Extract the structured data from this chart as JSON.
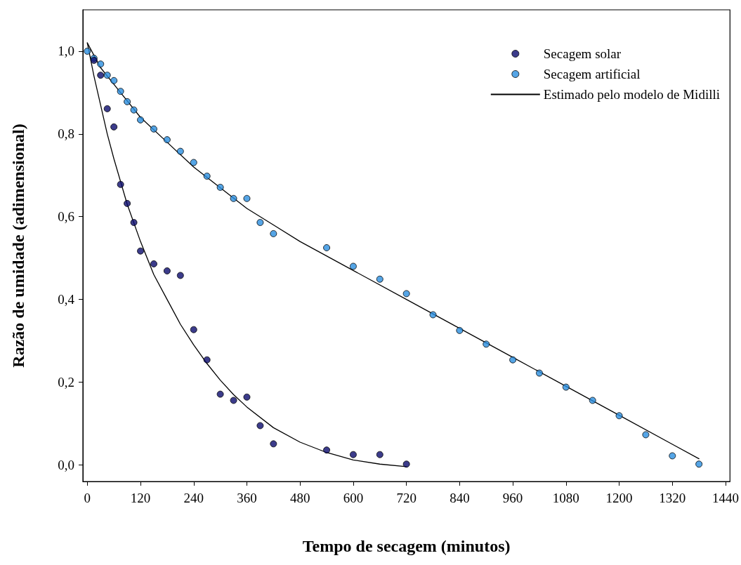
{
  "chart_data": {
    "type": "scatter",
    "xlabel": "Tempo de secagem (minutos)",
    "ylabel": "Razão de umidade (adimensional)",
    "xlim": [
      -10,
      1450
    ],
    "xticks": [
      0,
      120,
      240,
      360,
      480,
      600,
      720,
      840,
      960,
      1080,
      1200,
      1320,
      1440
    ],
    "ylim": [
      -0.04,
      1.1
    ],
    "yticks": [
      {
        "value": 0,
        "label": "0,0"
      },
      {
        "value": 0.2,
        "label": "0,2"
      },
      {
        "value": 0.4,
        "label": "0,4"
      },
      {
        "value": 0.6,
        "label": "0,6"
      },
      {
        "value": 0.8,
        "label": "0,8"
      },
      {
        "value": 1,
        "label": "1,0"
      }
    ],
    "grid": false,
    "legend": "top right",
    "marker": "circle",
    "series": [
      {
        "name": "Secagem solar",
        "color": "#0b0b6e",
        "x": [
          15,
          30,
          45,
          60,
          75,
          90,
          105,
          120,
          150,
          180,
          210,
          240,
          270,
          300,
          330,
          360,
          390,
          420,
          540,
          600,
          660,
          720
        ],
        "values": [
          0.978,
          0.942,
          0.861,
          0.817,
          0.678,
          0.632,
          0.586,
          0.517,
          0.486,
          0.469,
          0.458,
          0.327,
          0.254,
          0.171,
          0.156,
          0.164,
          0.095,
          0.051,
          0.036,
          0.025,
          0.025,
          0.002
        ]
      },
      {
        "name": "Secagem artificial",
        "color": "#2a8fe0",
        "x": [
          0,
          15,
          30,
          45,
          60,
          75,
          90,
          105,
          120,
          150,
          180,
          210,
          240,
          270,
          300,
          330,
          360,
          390,
          420,
          540,
          600,
          660,
          720,
          780,
          840,
          900,
          960,
          1020,
          1080,
          1140,
          1200,
          1260,
          1320,
          1380
        ],
        "values": [
          1.0,
          0.983,
          0.969,
          0.942,
          0.929,
          0.903,
          0.878,
          0.858,
          0.834,
          0.812,
          0.786,
          0.758,
          0.731,
          0.698,
          0.671,
          0.644,
          0.644,
          0.586,
          0.559,
          0.525,
          0.48,
          0.449,
          0.414,
          0.363,
          0.325,
          0.292,
          0.254,
          0.222,
          0.188,
          0.156,
          0.119,
          0.073,
          0.022,
          0.002
        ]
      },
      {
        "name": "Estimado pelo modelo de Midilli",
        "type": "line",
        "marker": "none",
        "color": "#000000",
        "x": [
          0,
          15,
          30,
          45,
          60,
          90,
          120,
          150,
          180,
          210,
          240,
          270,
          300,
          330,
          360,
          420,
          480,
          540,
          600,
          660,
          720
        ],
        "values": [
          1.02,
          0.94,
          0.87,
          0.8,
          0.74,
          0.63,
          0.54,
          0.46,
          0.4,
          0.34,
          0.29,
          0.245,
          0.205,
          0.17,
          0.14,
          0.09,
          0.055,
          0.03,
          0.012,
          0.002,
          -0.004
        ]
      },
      {
        "type": "line",
        "marker": "none",
        "color": "#000000",
        "x": [
          0,
          30,
          60,
          120,
          180,
          240,
          300,
          360,
          420,
          480,
          600,
          720,
          840,
          960,
          1080,
          1200,
          1320,
          1380
        ],
        "values": [
          1.02,
          0.96,
          0.92,
          0.84,
          0.78,
          0.72,
          0.67,
          0.62,
          0.58,
          0.54,
          0.47,
          0.4,
          0.33,
          0.26,
          0.19,
          0.12,
          0.05,
          0.015
        ]
      }
    ]
  }
}
